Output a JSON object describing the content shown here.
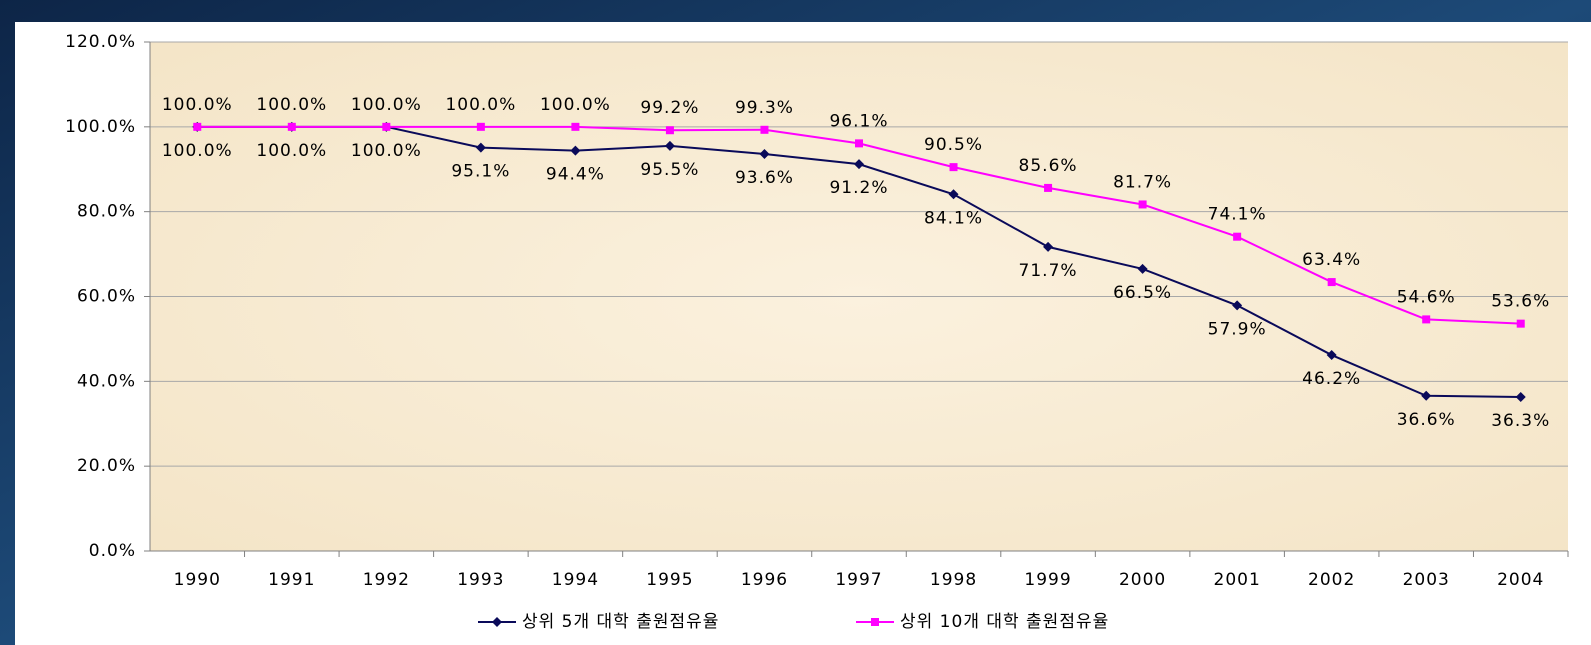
{
  "chart_data": {
    "type": "line",
    "categories": [
      "1990",
      "1991",
      "1992",
      "1993",
      "1994",
      "1995",
      "1996",
      "1997",
      "1998",
      "1999",
      "2000",
      "2001",
      "2002",
      "2003",
      "2004"
    ],
    "series": [
      {
        "name": "상위 5개 대학 출원점유율",
        "color": "#0a0a5a",
        "marker": "diamond",
        "values": [
          100,
          100,
          100,
          95.1,
          94.4,
          95.5,
          93.6,
          91.2,
          84.1,
          71.7,
          66.5,
          57.9,
          46.2,
          36.6,
          36.3
        ],
        "value_labels": [
          "100.0%",
          "100.0%",
          "100.0%",
          "95.1%",
          "94.4%",
          "95.5%",
          "93.6%",
          "91.2%",
          "84.1%",
          "71.7%",
          "66.5%",
          "57.9%",
          "46.2%",
          "36.6%",
          "36.3%"
        ]
      },
      {
        "name": "상위 10개 대학 출원점유율",
        "color": "#ff00ff",
        "marker": "square",
        "values": [
          100,
          100,
          100,
          100,
          100,
          99.2,
          99.3,
          96.1,
          90.5,
          85.6,
          81.7,
          74.1,
          63.4,
          54.6,
          53.6
        ],
        "value_labels": [
          "100.0%",
          "100.0%",
          "100.0%",
          "100.0%",
          "100.0%",
          "99.2%",
          "99.3%",
          "96.1%",
          "90.5%",
          "85.6%",
          "81.7%",
          "74.1%",
          "63.4%",
          "54.6%",
          "53.6%"
        ]
      }
    ],
    "ylim": [
      0,
      120
    ],
    "yticks": [
      {
        "value": 0,
        "label": "0.0%"
      },
      {
        "value": 20,
        "label": "20.0%"
      },
      {
        "value": 40,
        "label": "40.0%"
      },
      {
        "value": 60,
        "label": "60.0%"
      },
      {
        "value": 80,
        "label": "80.0%"
      },
      {
        "value": 100,
        "label": "100.0%"
      },
      {
        "value": 120,
        "label": "120.0%"
      }
    ],
    "grid": true,
    "legend": "bottom"
  }
}
